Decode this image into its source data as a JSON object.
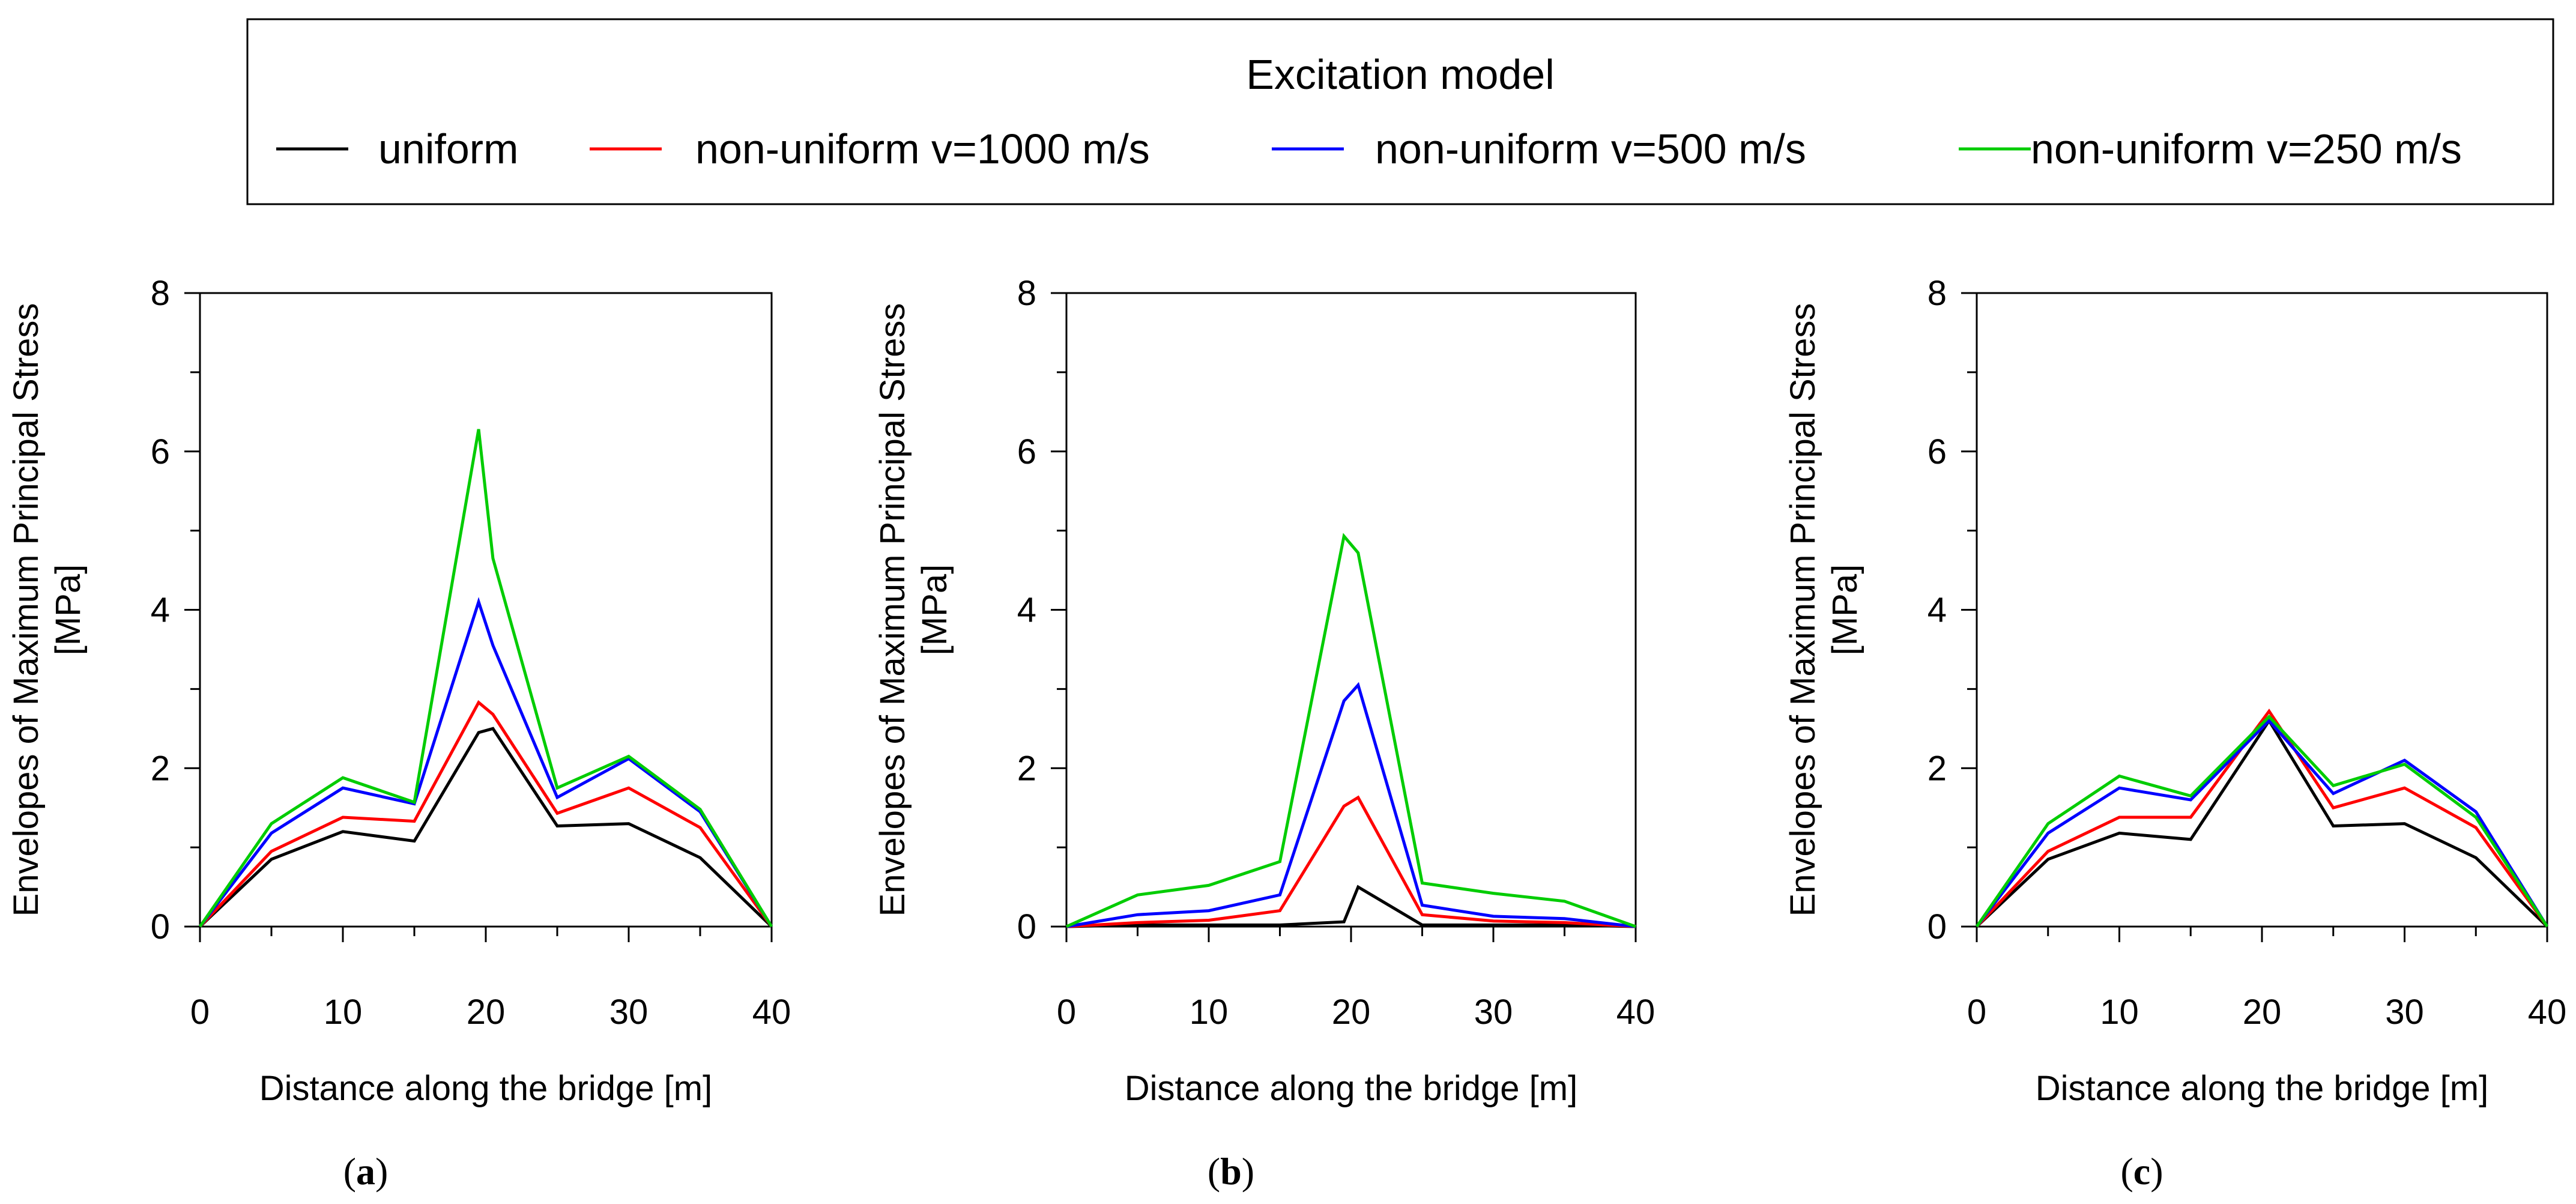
{
  "legend": {
    "title": "Excitation model",
    "entries": [
      {
        "label": "uniform",
        "color": "#000000"
      },
      {
        "label": "non-uniform v=1000 m/s",
        "color": "#ff0000"
      },
      {
        "label": "non-uniform v=500 m/s",
        "color": "#0000ff"
      },
      {
        "label": "non-uniform v=250 m/s",
        "color": "#00cc00"
      }
    ]
  },
  "chart_data": [
    {
      "type": "line",
      "panel": "a",
      "panel_label_open": "(",
      "panel_label_letter": "a",
      "panel_label_close": ")",
      "xlabel": "Distance along the bridge [m]",
      "ylabel_line1": "Envelopes of Maximum Principal Stress",
      "ylabel_line2": "[MPa]",
      "xlim": [
        0,
        40
      ],
      "ylim": [
        0,
        8
      ],
      "xticks": [
        0,
        10,
        20,
        30,
        40
      ],
      "yticks": [
        0,
        2,
        4,
        6,
        8
      ],
      "series": [
        {
          "name": "uniform",
          "x": [
            0,
            5,
            10,
            15,
            19.5,
            20.5,
            25,
            30,
            35,
            40
          ],
          "values": [
            0,
            0.85,
            1.2,
            1.08,
            2.45,
            2.5,
            1.27,
            1.3,
            0.87,
            0
          ]
        },
        {
          "name": "non-uniform v=1000 m/s",
          "x": [
            0,
            5,
            10,
            15,
            19.5,
            20.5,
            25,
            30,
            35,
            40
          ],
          "values": [
            0,
            0.95,
            1.38,
            1.33,
            2.83,
            2.68,
            1.43,
            1.75,
            1.25,
            0
          ]
        },
        {
          "name": "non-uniform v=500 m/s",
          "x": [
            0,
            5,
            10,
            15,
            19.5,
            20.5,
            25,
            30,
            35,
            40
          ],
          "values": [
            0,
            1.18,
            1.75,
            1.55,
            4.1,
            3.55,
            1.63,
            2.12,
            1.45,
            0
          ]
        },
        {
          "name": "non-uniform v=250 m/s",
          "x": [
            0,
            5,
            10,
            15,
            19.5,
            20.5,
            25,
            30,
            35,
            40
          ],
          "values": [
            0,
            1.3,
            1.88,
            1.57,
            6.28,
            4.65,
            1.75,
            2.15,
            1.48,
            0
          ]
        }
      ]
    },
    {
      "type": "line",
      "panel": "b",
      "panel_label_open": "(",
      "panel_label_letter": "b",
      "panel_label_close": ")",
      "xlabel": "Distance along the bridge [m]",
      "ylabel_line1": "Envelopes of Maximum Principal Stress",
      "ylabel_line2": "[MPa]",
      "xlim": [
        0,
        40
      ],
      "ylim": [
        0,
        8
      ],
      "xticks": [
        0,
        10,
        20,
        30,
        40
      ],
      "yticks": [
        0,
        2,
        4,
        6,
        8
      ],
      "series": [
        {
          "name": "uniform",
          "x": [
            0,
            5,
            10,
            15,
            19.5,
            20.5,
            25,
            30,
            35,
            40
          ],
          "values": [
            0,
            0.02,
            0.02,
            0.02,
            0.06,
            0.5,
            0.02,
            0.02,
            0.02,
            0
          ]
        },
        {
          "name": "non-uniform v=1000 m/s",
          "x": [
            0,
            5,
            10,
            15,
            19.5,
            20.5,
            25,
            30,
            35,
            40
          ],
          "values": [
            0,
            0.05,
            0.08,
            0.2,
            1.52,
            1.63,
            0.15,
            0.07,
            0.05,
            0
          ]
        },
        {
          "name": "non-uniform v=500 m/s",
          "x": [
            0,
            5,
            10,
            15,
            19.5,
            20.5,
            25,
            30,
            35,
            40
          ],
          "values": [
            0,
            0.15,
            0.2,
            0.4,
            2.85,
            3.05,
            0.27,
            0.13,
            0.1,
            0
          ]
        },
        {
          "name": "non-uniform v=250 m/s",
          "x": [
            0,
            5,
            10,
            15,
            19.5,
            20.5,
            25,
            30,
            35,
            40
          ],
          "values": [
            0,
            0.4,
            0.52,
            0.82,
            4.93,
            4.72,
            0.55,
            0.42,
            0.32,
            0
          ]
        }
      ]
    },
    {
      "type": "line",
      "panel": "c",
      "panel_label_open": "(",
      "panel_label_letter": "c",
      "panel_label_close": ")",
      "xlabel": "Distance along the bridge [m]",
      "ylabel_line1": "Envelopes of Maximum Principal Stress",
      "ylabel_line2": "[MPa]",
      "xlim": [
        0,
        40
      ],
      "ylim": [
        0,
        8
      ],
      "xticks": [
        0,
        10,
        20,
        30,
        40
      ],
      "yticks": [
        0,
        2,
        4,
        6,
        8
      ],
      "series": [
        {
          "name": "uniform",
          "x": [
            0,
            5,
            10,
            15,
            20.5,
            25,
            30,
            35,
            40
          ],
          "values": [
            0,
            0.85,
            1.18,
            1.1,
            2.6,
            1.27,
            1.3,
            0.87,
            0
          ]
        },
        {
          "name": "non-uniform v=1000 m/s",
          "x": [
            0,
            5,
            10,
            15,
            20.5,
            25,
            30,
            35,
            40
          ],
          "values": [
            0,
            0.95,
            1.38,
            1.38,
            2.72,
            1.5,
            1.75,
            1.25,
            0
          ]
        },
        {
          "name": "non-uniform v=500 m/s",
          "x": [
            0,
            5,
            10,
            15,
            20.5,
            25,
            30,
            35,
            40
          ],
          "values": [
            0,
            1.18,
            1.75,
            1.6,
            2.6,
            1.68,
            2.1,
            1.45,
            0
          ]
        },
        {
          "name": "non-uniform v=250 m/s",
          "x": [
            0,
            5,
            10,
            15,
            20.5,
            25,
            30,
            35,
            40
          ],
          "values": [
            0,
            1.3,
            1.9,
            1.65,
            2.65,
            1.78,
            2.05,
            1.38,
            0
          ]
        }
      ]
    }
  ]
}
